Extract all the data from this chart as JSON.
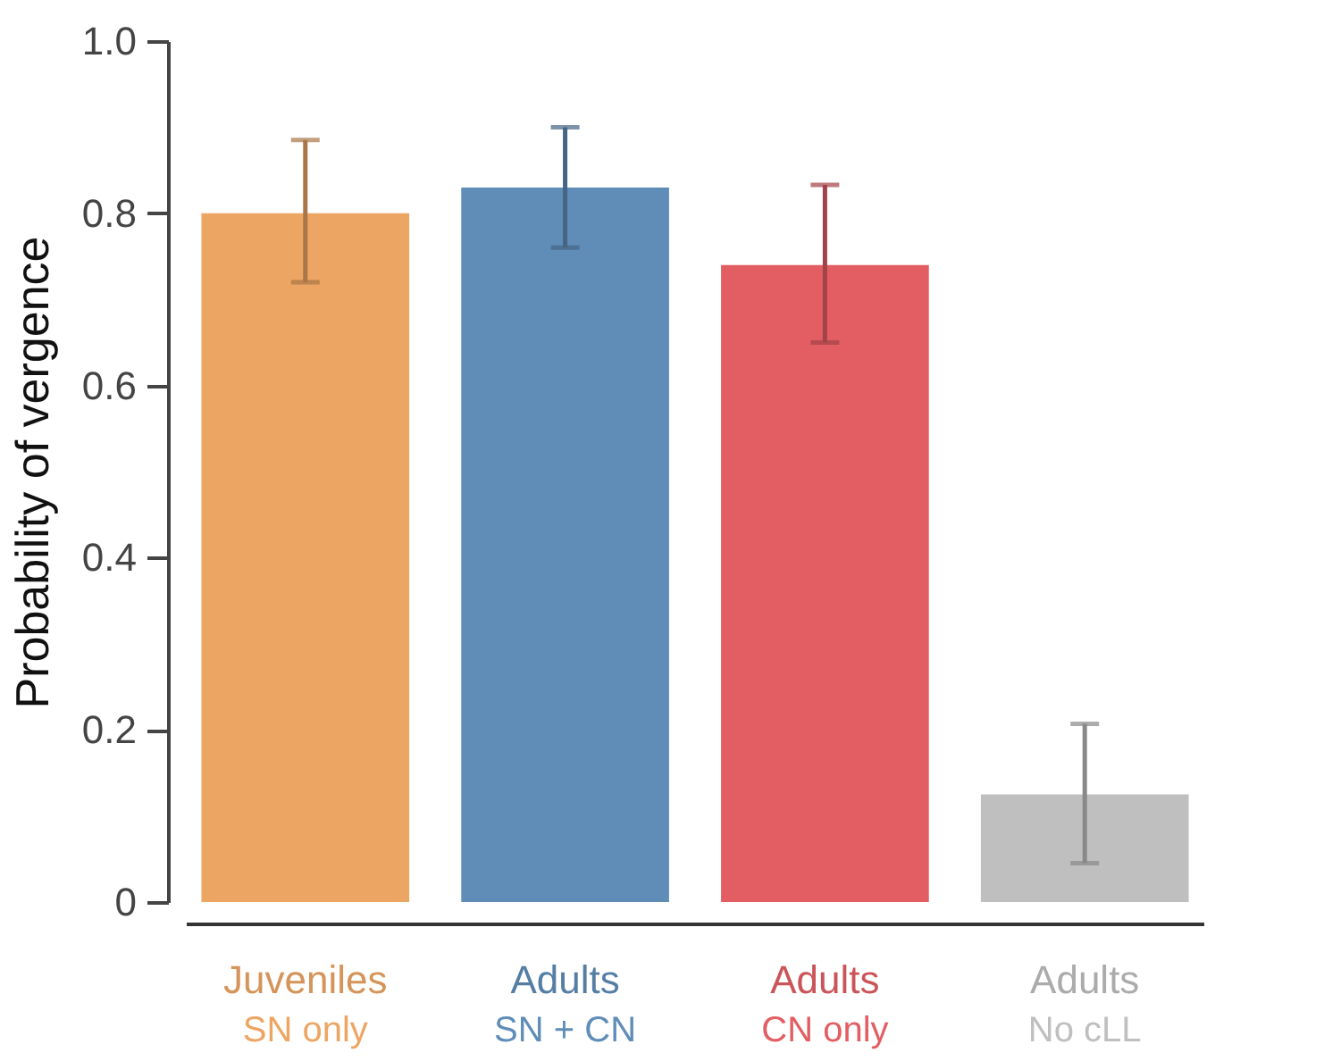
{
  "chart_data": {
    "type": "bar",
    "ylabel": "Probability of vergence",
    "categories": [
      "Juveniles\nSN only",
      "Adults\nSN + CN",
      "Adults\nCN only",
      "Adults\nNo cLL"
    ],
    "values": [
      0.8,
      0.83,
      0.74,
      0.125
    ],
    "colors": [
      "#eda563",
      "#5f8db8",
      "#e25e63",
      "#bfbfbf"
    ],
    "errors": [
      [
        0.72,
        0.885
      ],
      [
        0.76,
        0.9
      ],
      [
        0.65,
        0.833
      ],
      [
        0.045,
        0.207
      ]
    ],
    "ylim": [
      0,
      1.0
    ],
    "yticks": [
      {
        "value": 0,
        "label": "0"
      },
      {
        "value": 0.2,
        "label": "0.2"
      },
      {
        "value": 0.4,
        "label": "0.4"
      },
      {
        "value": 0.6,
        "label": "0.6"
      },
      {
        "value": 0.8,
        "label": "0.8"
      },
      {
        "value": 1.0,
        "label": "1.0"
      }
    ],
    "grid": false
  }
}
